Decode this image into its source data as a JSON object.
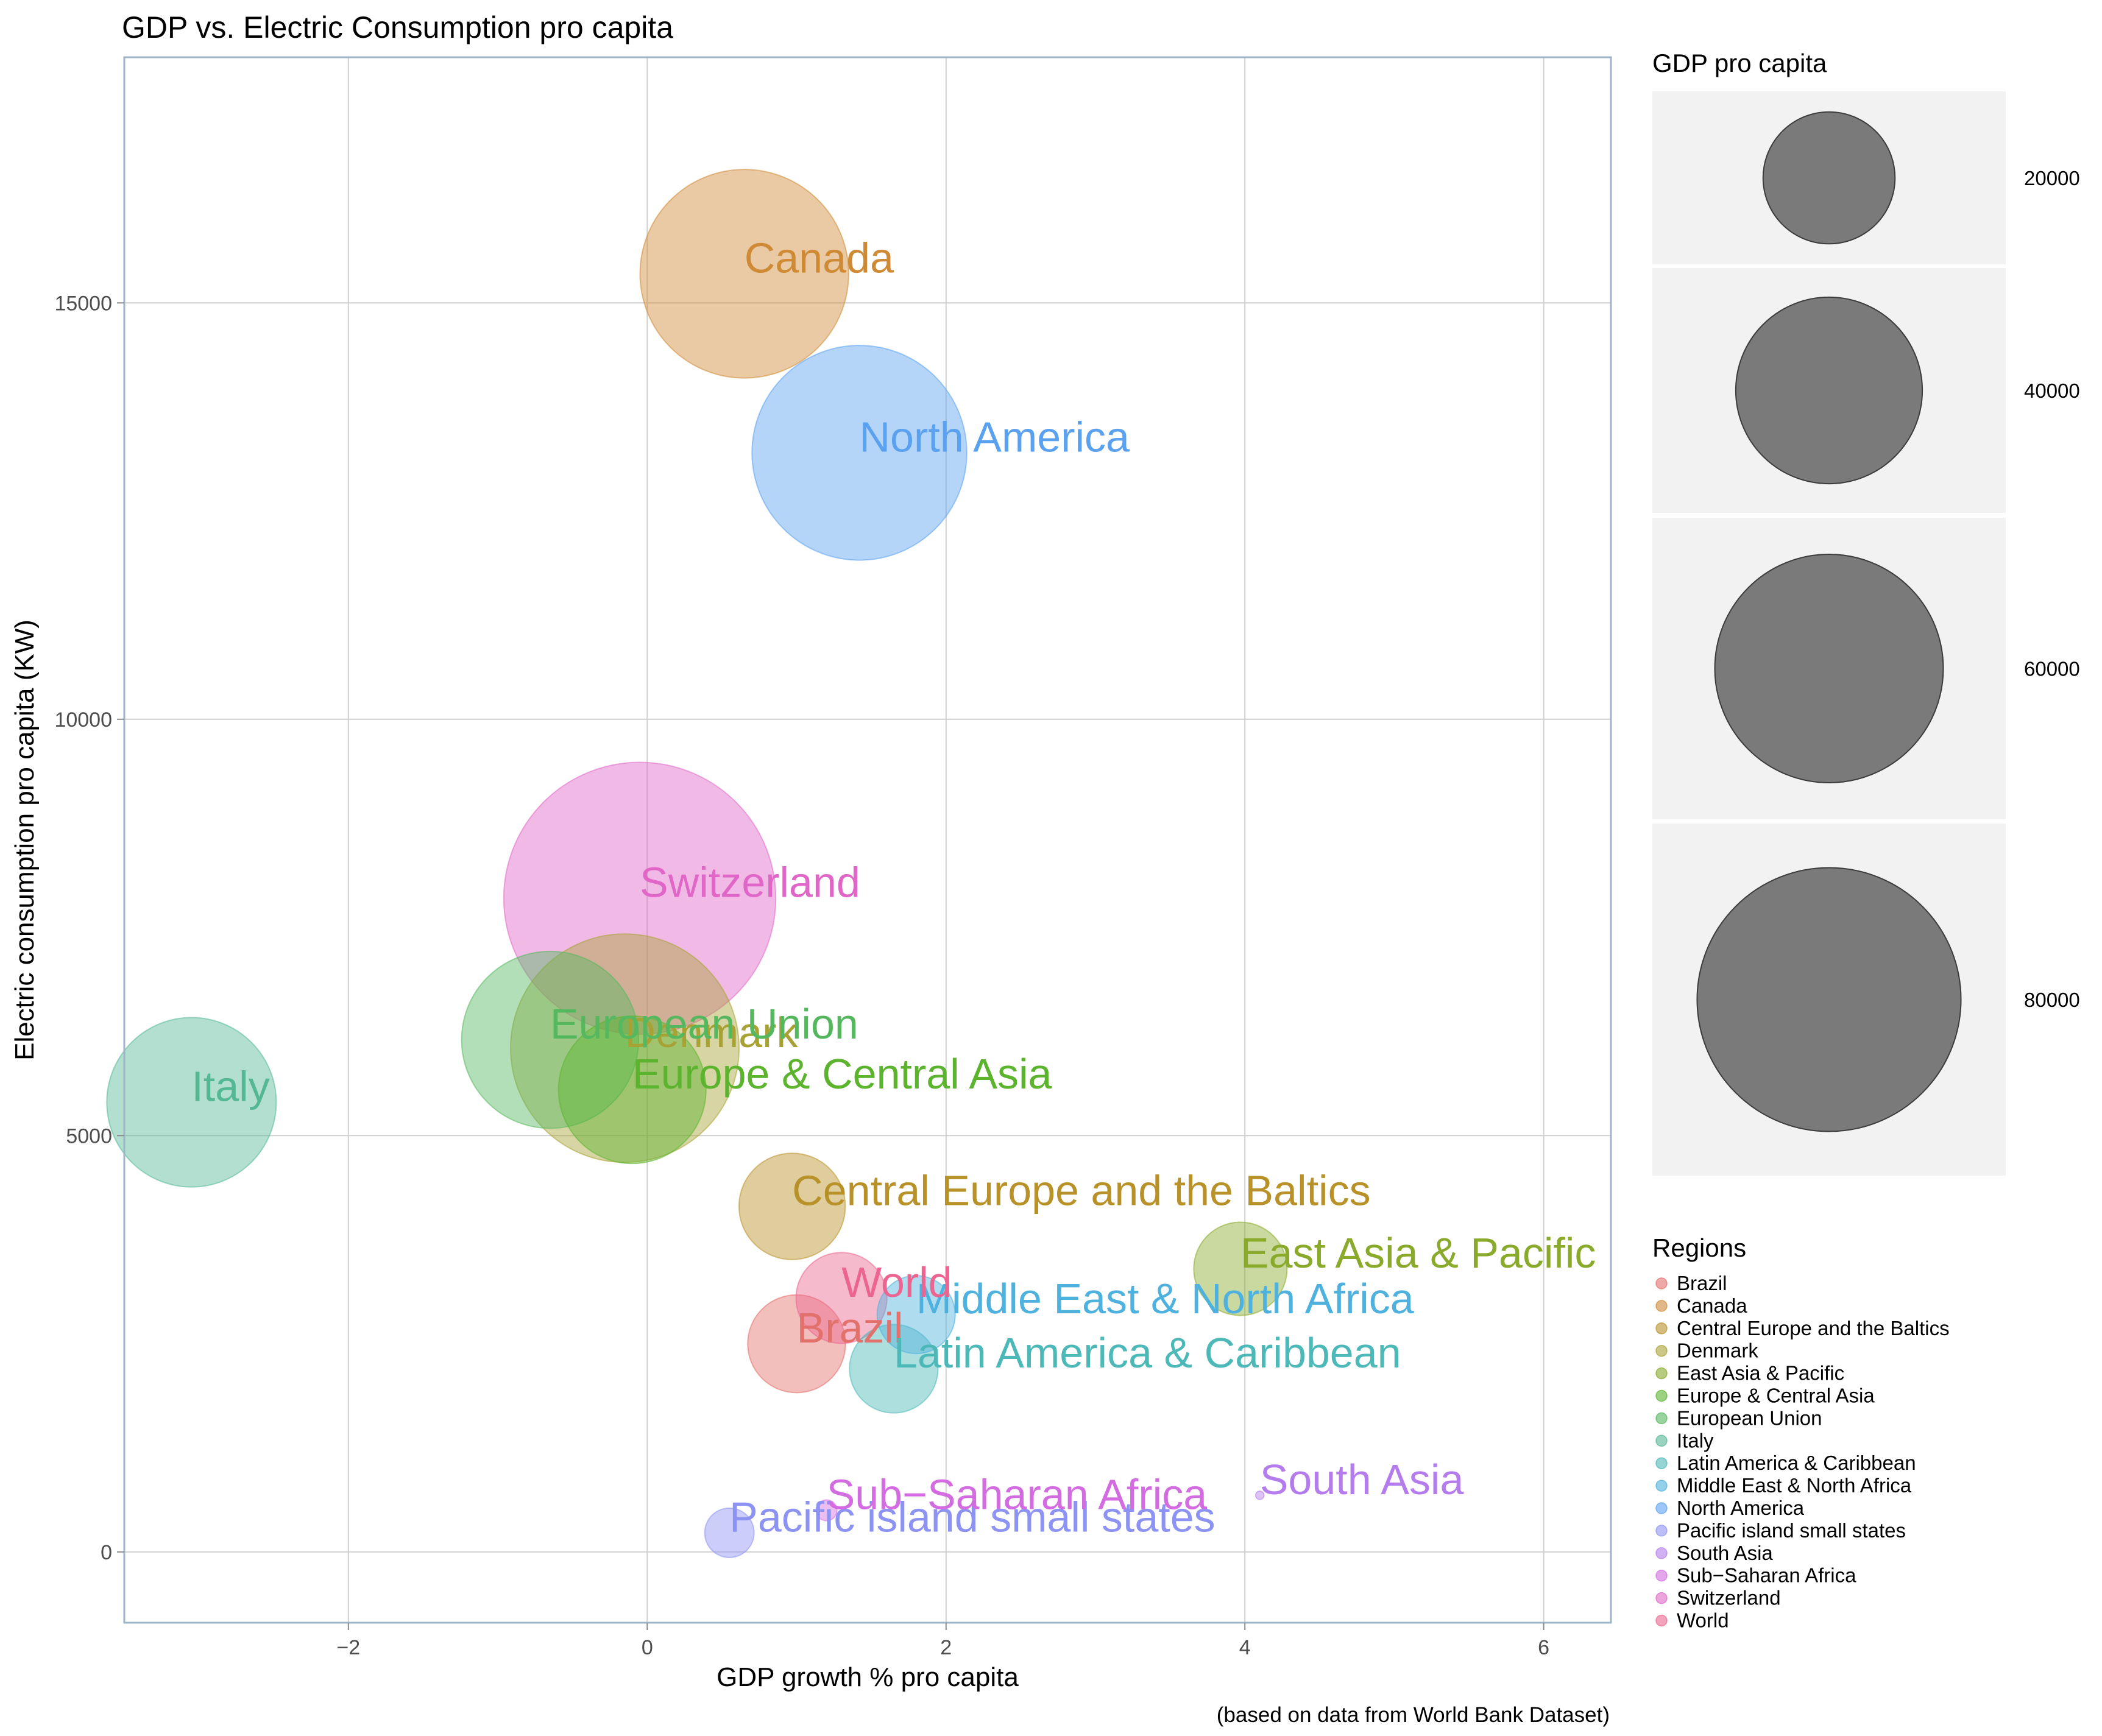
{
  "chart_data": {
    "type": "scatter",
    "title": "GDP vs. Electric Consumption pro capita",
    "xlabel": "GDP growth % pro capita",
    "ylabel": "Electric consumption pro capita (KW)",
    "caption": "(based on data from World Bank Dataset)",
    "xlim": [
      -3.5,
      6.45
    ],
    "ylim": [
      -850,
      17950
    ],
    "x_ticks": [
      -2,
      0,
      2,
      4,
      6
    ],
    "x_tick_labels": [
      "−2",
      "0",
      "2",
      "4",
      "6"
    ],
    "y_ticks": [
      0,
      5000,
      10000,
      15000
    ],
    "y_tick_labels": [
      "0",
      "5000",
      "10000",
      "15000"
    ],
    "grid": true,
    "size_legend": {
      "title": "GDP pro capita",
      "values": [
        20000,
        40000,
        60000,
        80000
      ],
      "labels": [
        "20000",
        "40000",
        "60000",
        "80000"
      ],
      "color": "#7a7a7a"
    },
    "color_legend": {
      "title": "Regions",
      "placement": "right"
    },
    "series": [
      {
        "name": "Brazil",
        "x": 1.0,
        "y": 2500,
        "size": 11000,
        "color": "#E2706B"
      },
      {
        "name": "Canada",
        "x": 0.65,
        "y": 15350,
        "size": 50000,
        "color": "#CF8A35"
      },
      {
        "name": "Central Europe and the Baltics",
        "x": 0.97,
        "y": 4150,
        "size": 13000,
        "color": "#B99129"
      },
      {
        "name": "Denmark",
        "x": -0.15,
        "y": 6050,
        "size": 60000,
        "color": "#A8A235"
      },
      {
        "name": "East Asia & Pacific",
        "x": 3.97,
        "y": 3400,
        "size": 10000,
        "color": "#89AA2A"
      },
      {
        "name": "Europe & Central Asia",
        "x": -0.1,
        "y": 5550,
        "size": 25000,
        "color": "#5CB42E"
      },
      {
        "name": "European Union",
        "x": -0.65,
        "y": 6150,
        "size": 36000,
        "color": "#55B85F"
      },
      {
        "name": "Italy",
        "x": -3.05,
        "y": 5400,
        "size": 33000,
        "color": "#54B894"
      },
      {
        "name": "Latin America & Caribbean",
        "x": 1.65,
        "y": 2200,
        "size": 9000,
        "color": "#4CB8B8"
      },
      {
        "name": "Middle East & North Africa",
        "x": 1.8,
        "y": 2850,
        "size": 7000,
        "color": "#4FB1DD"
      },
      {
        "name": "North America",
        "x": 1.42,
        "y": 13200,
        "size": 53000,
        "color": "#5AA1F0"
      },
      {
        "name": "Pacific island small states",
        "x": 0.55,
        "y": 230,
        "size": 2800,
        "color": "#8D93F2"
      },
      {
        "name": "South Asia",
        "x": 4.1,
        "y": 680,
        "size": 80,
        "color": "#B47CEC"
      },
      {
        "name": "Sub−Saharan Africa",
        "x": 1.2,
        "y": 500,
        "size": 500,
        "color": "#D26CE0"
      },
      {
        "name": "Switzerland",
        "x": -0.05,
        "y": 7850,
        "size": 85000,
        "color": "#E067C7"
      },
      {
        "name": "World",
        "x": 1.3,
        "y": 3050,
        "size": 9500,
        "color": "#EB6590"
      }
    ]
  }
}
